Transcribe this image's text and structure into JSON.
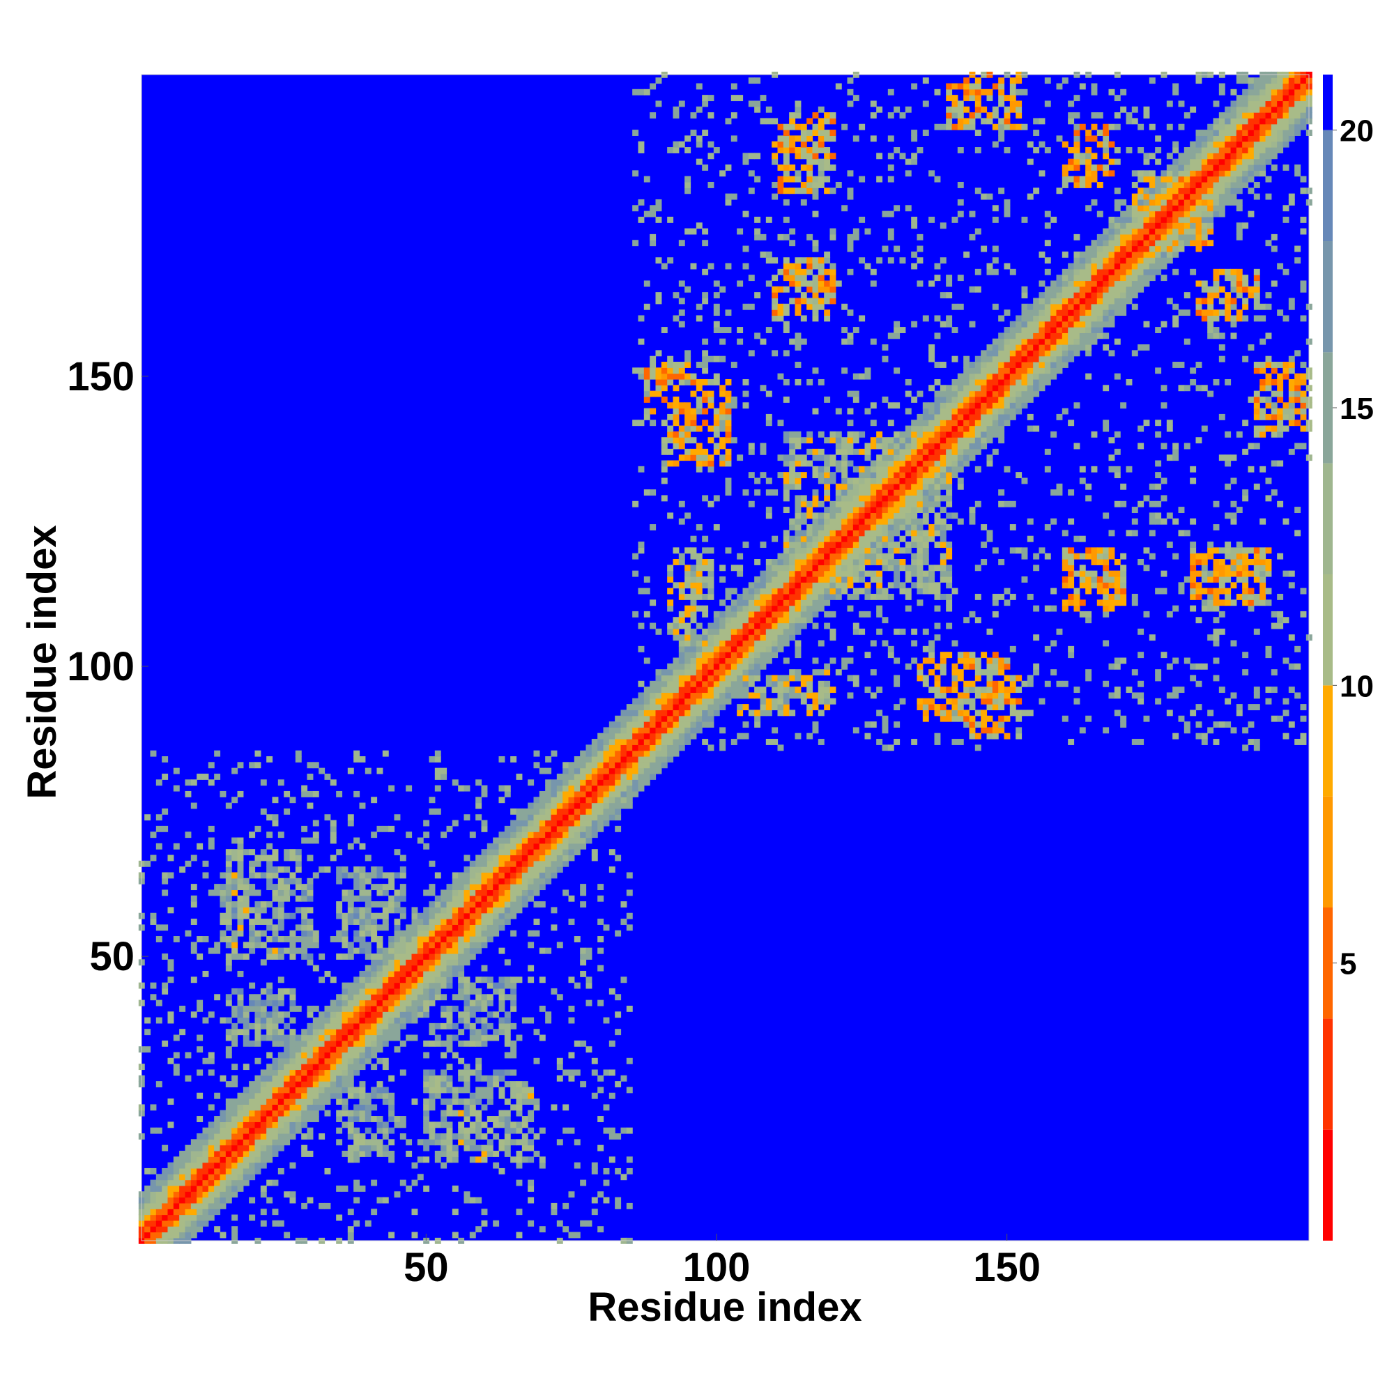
{
  "chart_data": {
    "type": "heatmap",
    "title": "",
    "xlabel": "Residue index",
    "ylabel": "Residue index",
    "n_residues": 202,
    "xlim": [
      1,
      202
    ],
    "ylim": [
      1,
      202
    ],
    "xticks": [
      50,
      100,
      150
    ],
    "yticks": [
      50,
      100,
      150
    ],
    "colorbar": {
      "ticks": [
        5,
        10,
        15,
        20
      ],
      "range": [
        0,
        21
      ],
      "cutoff": 20,
      "colors_low_to_high": [
        "#ff0000",
        "#ff3300",
        "#ff6600",
        "#ff9900",
        "#ffaa00",
        "#a8bb88",
        "#9fb68f",
        "#8aa69a",
        "#7796ac",
        "#6688b8",
        "#0000ff"
      ]
    },
    "values_description": "pairwise residue distance map (Å), values above 20 shown as cutoff",
    "domains": [
      {
        "start": 1,
        "end": 85
      },
      {
        "start": 86,
        "end": 202
      }
    ],
    "contact_patches": [
      {
        "x": [
          16,
          30
        ],
        "y": [
          50,
          65
        ],
        "mean": 15
      },
      {
        "x": [
          35,
          46
        ],
        "y": [
          50,
          65
        ],
        "mean": 15
      },
      {
        "x": [
          16,
          26
        ],
        "y": [
          36,
          44
        ],
        "mean": 15
      },
      {
        "x": [
          35,
          44
        ],
        "y": [
          17,
          27
        ],
        "mean": 15
      },
      {
        "x": [
          50,
          68
        ],
        "y": [
          15,
          28
        ],
        "mean": 14
      },
      {
        "x": [
          50,
          65
        ],
        "y": [
          37,
          46
        ],
        "mean": 15
      },
      {
        "x": [
          91,
          102
        ],
        "y": [
          135,
          150
        ],
        "mean": 9
      },
      {
        "x": [
          111,
          119
        ],
        "y": [
          160,
          170
        ],
        "mean": 9
      },
      {
        "x": [
          111,
          120
        ],
        "y": [
          185,
          195
        ],
        "mean": 9
      },
      {
        "x": [
          144,
          151
        ],
        "y": [
          195,
          202
        ],
        "mean": 9
      },
      {
        "x": [
          143,
          152
        ],
        "y": [
          88,
          98
        ],
        "mean": 9
      },
      {
        "x": [
          160,
          168
        ],
        "y": [
          110,
          120
        ],
        "mean": 9
      },
      {
        "x": [
          182,
          190
        ],
        "y": [
          110,
          120
        ],
        "mean": 9
      },
      {
        "x": [
          193,
          202
        ],
        "y": [
          140,
          152
        ],
        "mean": 9
      },
      {
        "x": [
          183,
          190
        ],
        "y": [
          160,
          166
        ],
        "mean": 9
      },
      {
        "x": [
          162,
          168
        ],
        "y": [
          185,
          193
        ],
        "mean": 9
      },
      {
        "x": [
          172,
          182
        ],
        "y": [
          176,
          185
        ],
        "mean": 10
      },
      {
        "x": [
          104,
          118
        ],
        "y": [
          92,
          98
        ],
        "mean": 12
      },
      {
        "x": [
          93,
          99
        ],
        "y": [
          112,
          120
        ],
        "mean": 12
      },
      {
        "x": [
          120,
          140
        ],
        "y": [
          112,
          140
        ],
        "mean": 13
      }
    ]
  }
}
